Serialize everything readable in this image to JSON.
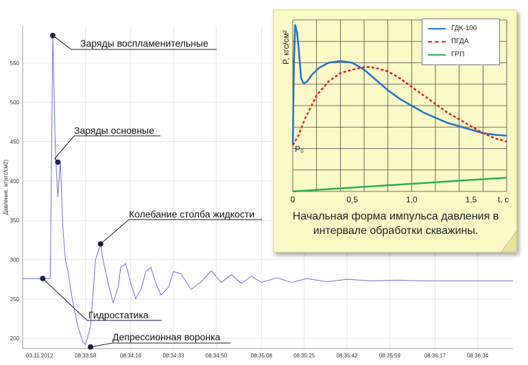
{
  "chart_data": [
    {
      "type": "line",
      "ylabel": "Давление, ат(кгс/см2)",
      "ylim": [
        187,
        597
      ],
      "yticks": [
        200,
        250,
        300,
        350,
        400,
        450,
        500,
        550
      ],
      "date_label": "03.11.2012",
      "xtick_labels": [
        "08:33:58",
        "08:34:16",
        "08:34:33",
        "08:34:50",
        "08:35:08",
        "08:35:25",
        "08:35:42",
        "08:35:59",
        "08:36:17",
        "08:36:34"
      ],
      "line_color": "#6a6ad8",
      "series": [
        {
          "x": [
            "08:33:33",
            "08:33:44",
            "08:33:45",
            "08:33:46",
            "08:33:47",
            "08:33:48",
            "08:33:49",
            "08:33:50",
            "08:33:51",
            "08:33:53",
            "08:33:55",
            "08:33:57",
            "08:33:58",
            "08:34:00",
            "08:34:02",
            "08:34:04",
            "08:34:05",
            "08:34:07",
            "08:34:09",
            "08:34:11",
            "08:34:12",
            "08:34:14",
            "08:34:16",
            "08:34:18",
            "08:34:20",
            "08:34:22",
            "08:34:24",
            "08:34:26",
            "08:34:28",
            "08:34:31",
            "08:34:33",
            "08:34:36",
            "08:34:40",
            "08:34:44",
            "08:34:48",
            "08:34:52",
            "08:34:56",
            "08:35:00",
            "08:35:04",
            "08:35:08",
            "08:35:14",
            "08:35:20",
            "08:35:26",
            "08:35:34",
            "08:35:42",
            "08:35:52",
            "08:36:02",
            "08:36:12",
            "08:36:24",
            "08:36:36",
            "08:36:48"
          ],
          "y": [
            276,
            276,
            586,
            440,
            380,
            425,
            340,
            300,
            285,
            245,
            215,
            195,
            192,
            215,
            300,
            320,
            300,
            270,
            245,
            265,
            290,
            295,
            270,
            250,
            262,
            285,
            290,
            270,
            255,
            265,
            285,
            282,
            262,
            272,
            286,
            271,
            281,
            270,
            279,
            271,
            277,
            271,
            276,
            272,
            275,
            273,
            274,
            273,
            273,
            273,
            273
          ]
        }
      ],
      "annotations": [
        {
          "text": "Заряды воспламенительные",
          "x": "08:33:45",
          "y": 585
        },
        {
          "text": "Заряды основные",
          "x": "08:33:47",
          "y": 424
        },
        {
          "text": "Колебание столба жидкости",
          "x": "08:34:04",
          "y": 320
        },
        {
          "text": "Гидростатика",
          "x": "08:33:41",
          "y": 276
        },
        {
          "text": "Депрессионная воронка",
          "x": "08:34:00",
          "y": 189
        }
      ]
    },
    {
      "type": "line",
      "ylabel": "P, кгс/см²",
      "xlabel": "t, с",
      "xlim": [
        0,
        1.8
      ],
      "xticks": [
        "0",
        "0,5",
        "1,0",
        "1,5"
      ],
      "p0_label": "P₀",
      "series": [
        {
          "name": "ГДК-100",
          "color": "#1f72c8",
          "style": "solid",
          "x": [
            0,
            0.01,
            0.02,
            0.035,
            0.05,
            0.07,
            0.09,
            0.12,
            0.16,
            0.22,
            0.3,
            0.4,
            0.5,
            0.6,
            0.7,
            0.8,
            0.9,
            1.0,
            1.1,
            1.2,
            1.3,
            1.4,
            1.5,
            1.6,
            1.7,
            1.8
          ],
          "y": [
            0.27,
            0.75,
            0.97,
            0.93,
            0.83,
            0.66,
            0.63,
            0.64,
            0.68,
            0.72,
            0.75,
            0.76,
            0.75,
            0.71,
            0.65,
            0.59,
            0.54,
            0.5,
            0.46,
            0.43,
            0.4,
            0.38,
            0.36,
            0.34,
            0.33,
            0.325
          ]
        },
        {
          "name": "ПГДА",
          "color": "#e01c1c",
          "style": "dashed",
          "x": [
            0,
            0.05,
            0.1,
            0.15,
            0.2,
            0.3,
            0.4,
            0.5,
            0.6,
            0.65,
            0.7,
            0.8,
            0.9,
            1.0,
            1.1,
            1.2,
            1.3,
            1.4,
            1.5,
            1.6,
            1.7,
            1.8
          ],
          "y": [
            0.27,
            0.33,
            0.42,
            0.49,
            0.56,
            0.64,
            0.69,
            0.71,
            0.725,
            0.725,
            0.72,
            0.7,
            0.66,
            0.61,
            0.56,
            0.51,
            0.46,
            0.42,
            0.38,
            0.34,
            0.31,
            0.29
          ]
        },
        {
          "name": "ГРП",
          "color": "#22b34a",
          "style": "solid",
          "x": [
            0,
            1.8
          ],
          "y": [
            0.0,
            0.08
          ]
        }
      ]
    }
  ],
  "inset": {
    "caption": "Начальная форма импульса давления в интервале обработки скважины."
  }
}
